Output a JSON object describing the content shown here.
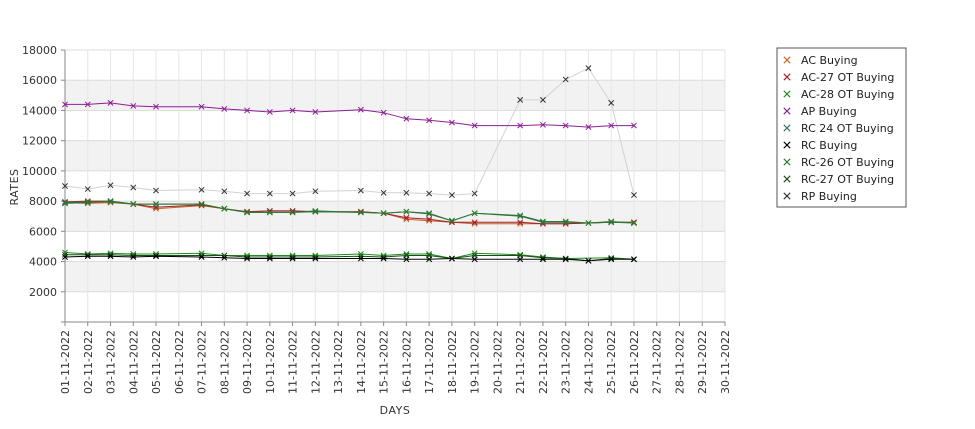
{
  "chart_data": {
    "type": "line",
    "xlabel": "DAYS",
    "ylabel": "RATES",
    "ylim": [
      0,
      18000
    ],
    "yticks": [
      2000,
      4000,
      6000,
      8000,
      10000,
      12000,
      14000,
      16000,
      18000
    ],
    "grid": true,
    "legend_position": "right",
    "categories": [
      "01-11-2022",
      "02-11-2022",
      "03-11-2022",
      "04-11-2022",
      "05-11-2022",
      "06-11-2022",
      "07-11-2022",
      "08-11-2022",
      "09-11-2022",
      "10-11-2022",
      "11-11-2022",
      "12-11-2022",
      "13-11-2022",
      "14-11-2022",
      "15-11-2022",
      "16-11-2022",
      "17-11-2022",
      "18-11-2022",
      "19-11-2022",
      "20-11-2022",
      "21-11-2022",
      "22-11-2022",
      "23-11-2022",
      "24-11-2022",
      "25-11-2022",
      "26-11-2022",
      "27-11-2022",
      "28-11-2022",
      "29-11-2022",
      "30-11-2022"
    ],
    "series": [
      {
        "name": "AC Buying",
        "color": "#c8641e",
        "values": [
          7900,
          7850,
          7900,
          7800,
          7500,
          null,
          7700,
          7500,
          7300,
          7350,
          7350,
          7300,
          null,
          7300,
          7200,
          6800,
          6700,
          6600,
          6500,
          null,
          6500,
          6500,
          6500,
          null,
          6600,
          6600,
          null,
          null,
          null,
          null
        ]
      },
      {
        "name": "AC-27 OT Buying",
        "color": "#a01e32",
        "values": [
          7950,
          8000,
          8000,
          7800,
          7600,
          null,
          7750,
          7500,
          7300,
          7350,
          7350,
          7300,
          null,
          7300,
          7200,
          6900,
          6800,
          6600,
          6600,
          null,
          6600,
          6500,
          6500,
          null,
          6600,
          6600,
          null,
          null,
          null,
          null
        ]
      },
      {
        "name": "AC-28 OT Buying",
        "color": "#1e8c1e",
        "values": [
          4600,
          4500,
          4550,
          4500,
          4500,
          null,
          4550,
          4400,
          4400,
          4400,
          4400,
          4400,
          null,
          4500,
          4400,
          4500,
          4500,
          4200,
          4550,
          null,
          4450,
          4300,
          4200,
          null,
          4250,
          4150,
          null,
          null,
          null,
          null
        ]
      },
      {
        "name": "AP Buying",
        "color": "#8c1e96",
        "values": [
          14400,
          14400,
          14500,
          14300,
          14250,
          null,
          14250,
          14100,
          14000,
          13900,
          14000,
          13900,
          null,
          14050,
          13850,
          13450,
          13350,
          13200,
          13000,
          null,
          13000,
          13050,
          13000,
          12900,
          13000,
          13000,
          null,
          null,
          null,
          null
        ]
      },
      {
        "name": "RC 24 OT Buying",
        "color": "#2e6e4e",
        "values": [
          7850,
          7900,
          8000,
          7800,
          7800,
          null,
          7800,
          7500,
          7250,
          7250,
          7250,
          7300,
          null,
          7250,
          7200,
          7300,
          7200,
          6700,
          7200,
          null,
          7000,
          6600,
          6600,
          6550,
          6600,
          6550,
          null,
          null,
          null,
          null
        ]
      },
      {
        "name": "RC Buying",
        "color": "#000000",
        "values": [
          4300,
          4350,
          4350,
          4300,
          4350,
          null,
          4300,
          4250,
          4200,
          4200,
          4200,
          4200,
          null,
          4200,
          4200,
          4150,
          4150,
          4200,
          4150,
          null,
          4150,
          4150,
          4150,
          4050,
          4150,
          4150,
          null,
          null,
          null,
          null
        ]
      },
      {
        "name": "RC-26 OT Buying",
        "color": "#2a7a2a",
        "values": [
          7900,
          7950,
          7950,
          7800,
          7800,
          null,
          7800,
          7500,
          7250,
          7250,
          7250,
          7350,
          null,
          7250,
          7200,
          7300,
          7150,
          6700,
          7200,
          null,
          7050,
          6650,
          6650,
          6550,
          6650,
          6550,
          null,
          null,
          null,
          null
        ]
      },
      {
        "name": "RC-27 OT Buying",
        "color": "#145014",
        "values": [
          4450,
          4450,
          4450,
          4400,
          4400,
          null,
          4400,
          4400,
          4300,
          4300,
          4300,
          4300,
          null,
          4350,
          4300,
          4400,
          4400,
          4200,
          4400,
          null,
          4400,
          4250,
          4200,
          4050,
          4200,
          4150,
          null,
          null,
          null,
          null
        ]
      },
      {
        "name": "RP Buying",
        "color": "#d2d2d2",
        "values": [
          9000,
          8800,
          9050,
          8900,
          8700,
          null,
          8750,
          8650,
          8500,
          8500,
          8500,
          8650,
          null,
          8700,
          8550,
          8550,
          8500,
          8400,
          8500,
          null,
          14700,
          14700,
          16050,
          16800,
          14500,
          8400,
          null,
          null,
          null,
          null
        ]
      }
    ]
  }
}
